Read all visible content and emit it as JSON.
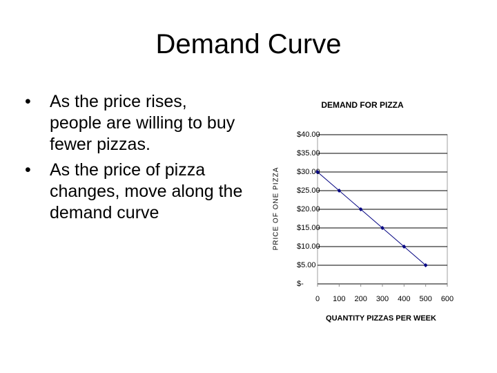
{
  "slide": {
    "title": "Demand Curve",
    "bullets": [
      "As the price rises, people are willing to buy fewer pizzas.",
      "As the price of pizza changes, move along the demand curve"
    ]
  },
  "chart_data": {
    "type": "line",
    "title": "DEMAND FOR PIZZA",
    "x_label": "QUANTITY PIZZAS PER WEEK",
    "y_label": "PRICE OF ONE PIZZA",
    "x": [
      0,
      100,
      200,
      300,
      400,
      500
    ],
    "values": [
      30,
      25,
      20,
      15,
      10,
      5
    ],
    "color": "#000080",
    "xlim": [
      0,
      600
    ],
    "xticks": [
      0,
      100,
      200,
      300,
      400,
      500,
      600
    ],
    "ylim": [
      0,
      40
    ],
    "yticks": [
      {
        "value": 0,
        "label": "$-"
      },
      {
        "value": 5,
        "label": "$5.00"
      },
      {
        "value": 10,
        "label": "$10.00"
      },
      {
        "value": 15,
        "label": "$15.00"
      },
      {
        "value": 20,
        "label": "$20.00"
      },
      {
        "value": 25,
        "label": "$25.00"
      },
      {
        "value": 30,
        "label": "$30.00"
      },
      {
        "value": 35,
        "label": "$35.00"
      },
      {
        "value": 40,
        "label": "$40.00"
      }
    ],
    "grid": true
  }
}
